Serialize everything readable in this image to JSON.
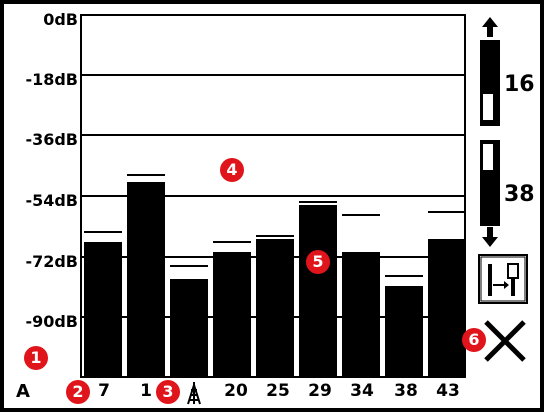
{
  "channel": "A",
  "y_labels": [
    "0dB",
    "-18dB",
    "-36dB",
    "-54dB",
    "-72dB",
    "-90dB"
  ],
  "x_labels": [
    "7",
    "1",
    "20",
    "25",
    "29",
    "34",
    "38",
    "43"
  ],
  "controls": {
    "upper_value": "16",
    "lower_value": "38"
  },
  "badges": [
    "1",
    "2",
    "3",
    "4",
    "5",
    "6"
  ],
  "icons": [
    "antenna-icon",
    "arrow-up-icon",
    "arrow-down-icon",
    "adjust-icon",
    "close-icon"
  ],
  "chart_data": {
    "type": "bar",
    "categories": [
      "7",
      "1",
      "",
      "20",
      "25",
      "29",
      "34",
      "38",
      "43"
    ],
    "values": [
      -68,
      -50,
      -79,
      -71,
      -67,
      -57,
      -71,
      -81,
      -67
    ],
    "peaks": [
      -66,
      -49,
      -76,
      -69,
      -67,
      -57,
      -61,
      -79,
      -60
    ],
    "ylim": [
      -108,
      0
    ]
  }
}
